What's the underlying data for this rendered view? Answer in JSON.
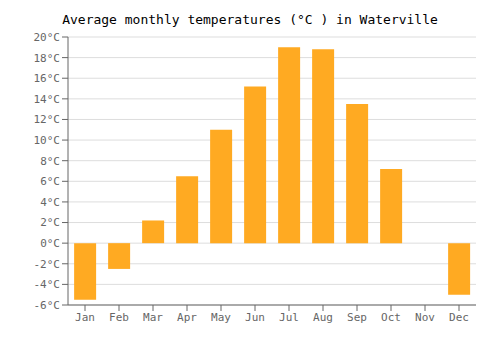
{
  "chart_data": {
    "type": "bar",
    "title": "Average monthly temperatures (°C ) in Waterville",
    "categories": [
      "Jan",
      "Feb",
      "Mar",
      "Apr",
      "May",
      "Jun",
      "Jul",
      "Aug",
      "Sep",
      "Oct",
      "Nov",
      "Dec"
    ],
    "values": [
      -5.5,
      -2.5,
      2.2,
      6.5,
      11.0,
      15.2,
      19.0,
      18.8,
      13.5,
      7.2,
      0.0,
      -5.0
    ],
    "color": "#FFAA22",
    "ylim": [
      -6,
      20
    ],
    "yticks": [
      {
        "value": -6,
        "label": "-6°C"
      },
      {
        "value": -4,
        "label": "-4°C"
      },
      {
        "value": -2,
        "label": "-2°C"
      },
      {
        "value": 0,
        "label": "0°C"
      },
      {
        "value": 2,
        "label": "2°C"
      },
      {
        "value": 4,
        "label": "4°C"
      },
      {
        "value": 6,
        "label": "6°C"
      },
      {
        "value": 8,
        "label": "8°C"
      },
      {
        "value": 10,
        "label": "10°C"
      },
      {
        "value": 12,
        "label": "12°C"
      },
      {
        "value": 14,
        "label": "14°C"
      },
      {
        "value": 16,
        "label": "16°C"
      },
      {
        "value": 18,
        "label": "18°C"
      },
      {
        "value": 20,
        "label": "20°C"
      }
    ],
    "grid": true
  }
}
